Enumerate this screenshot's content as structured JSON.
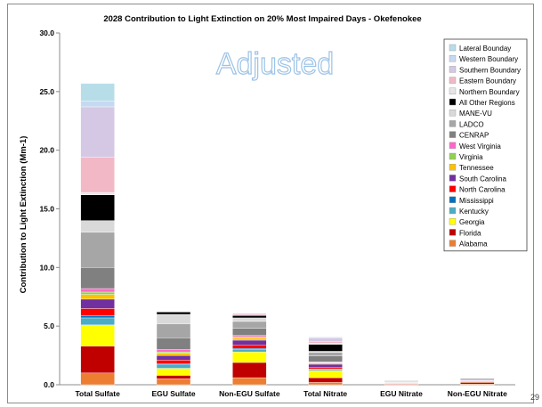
{
  "page_number": "29",
  "chart_data": {
    "type": "bar",
    "stacked": true,
    "title": "2028 Contribution to Light Extinction on 20% Most Impaired Days - Okefenokee",
    "ylabel": "Contribution to Light Extinction (Mm-1)",
    "xlabel": "",
    "ylim": [
      0,
      30
    ],
    "yticks": [
      "0.0",
      "5.0",
      "10.0",
      "15.0",
      "20.0",
      "25.0",
      "30.0"
    ],
    "grid": false,
    "legend_position": "right",
    "watermark": "Adjusted",
    "categories": [
      "Total Sulfate",
      "EGU Sulfate",
      "Non-EGU Sulfate",
      "Total Nitrate",
      "EGU Nitrate",
      "Non-EGU Nitrate"
    ],
    "series": [
      {
        "name": "Alabama",
        "color": "#ed7d31",
        "values": [
          1.0,
          0.5,
          0.6,
          0.2,
          0.05,
          0.05
        ]
      },
      {
        "name": "Florida",
        "color": "#c00000",
        "values": [
          2.3,
          0.3,
          1.3,
          0.4,
          0.05,
          0.15
        ]
      },
      {
        "name": "Georgia",
        "color": "#ffff00",
        "values": [
          1.8,
          0.6,
          0.9,
          0.6,
          0.08,
          0.12
        ]
      },
      {
        "name": "Kentucky",
        "color": "#4bacc6",
        "values": [
          0.6,
          0.3,
          0.2,
          0.1,
          0.02,
          0.02
        ]
      },
      {
        "name": "Mississippi",
        "color": "#0070c0",
        "values": [
          0.2,
          0.1,
          0.1,
          0.05,
          0.0,
          0.0
        ]
      },
      {
        "name": "North Carolina",
        "color": "#ff0000",
        "values": [
          0.6,
          0.3,
          0.3,
          0.15,
          0.02,
          0.02
        ]
      },
      {
        "name": "South Carolina",
        "color": "#7030a0",
        "values": [
          0.8,
          0.4,
          0.4,
          0.25,
          0.03,
          0.03
        ]
      },
      {
        "name": "Tennessee",
        "color": "#ffc000",
        "values": [
          0.4,
          0.2,
          0.2,
          0.1,
          0.02,
          0.02
        ]
      },
      {
        "name": "Virginia",
        "color": "#92d050",
        "values": [
          0.2,
          0.1,
          0.1,
          0.05,
          0.0,
          0.0
        ]
      },
      {
        "name": "West Virginia",
        "color": "#ff66cc",
        "values": [
          0.3,
          0.2,
          0.1,
          0.05,
          0.0,
          0.0
        ]
      },
      {
        "name": "CENRAP",
        "color": "#808080",
        "values": [
          1.8,
          1.0,
          0.6,
          0.5,
          0.05,
          0.1
        ]
      },
      {
        "name": "LADCO",
        "color": "#a6a6a6",
        "values": [
          3.0,
          1.2,
          0.6,
          0.3,
          0.02,
          0.05
        ]
      },
      {
        "name": "MANE-VU",
        "color": "#d9d9d9",
        "values": [
          1.0,
          0.8,
          0.3,
          0.1,
          0.0,
          0.02
        ]
      },
      {
        "name": "All Other Regions",
        "color": "#000000",
        "values": [
          2.2,
          0.2,
          0.2,
          0.6,
          0.01,
          0.02
        ]
      },
      {
        "name": "Northern Boundary",
        "color": "#e6e6e6",
        "values": [
          0.2,
          0.0,
          0.0,
          0.1,
          0.0,
          0.0
        ]
      },
      {
        "name": "Eastern Boundary",
        "color": "#f2b8c6",
        "values": [
          3.0,
          0.0,
          0.1,
          0.15,
          0.0,
          0.0
        ]
      },
      {
        "name": "Southern Boundary",
        "color": "#d4c8e4",
        "values": [
          4.3,
          0.0,
          0.1,
          0.3,
          0.0,
          0.0
        ]
      },
      {
        "name": "Western Boundary",
        "color": "#c5d9f1",
        "values": [
          0.5,
          0.0,
          0.0,
          0.05,
          0.0,
          0.0
        ]
      },
      {
        "name": "Lateral Bounday",
        "color": "#b7dee8",
        "values": [
          1.5,
          0.0,
          0.0,
          0.05,
          0.0,
          0.0
        ]
      }
    ]
  }
}
